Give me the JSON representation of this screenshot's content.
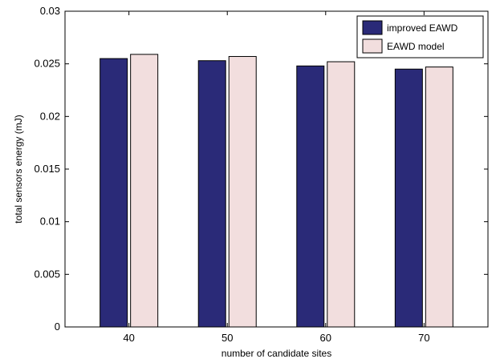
{
  "chart_data": {
    "type": "bar",
    "categories": [
      "40",
      "50",
      "60",
      "70"
    ],
    "series": [
      {
        "name": "improved EAWD",
        "values": [
          0.0255,
          0.0253,
          0.0248,
          0.0245
        ],
        "color": "#2a2a78"
      },
      {
        "name": "EAWD model",
        "values": [
          0.0259,
          0.0257,
          0.0252,
          0.0247
        ],
        "color": "#f2dede"
      }
    ],
    "xlabel": "number of candidate sites",
    "ylabel": "total sensors energy (mJ)",
    "ylim": [
      0,
      0.03
    ],
    "yticks": [
      "0",
      "0.005",
      "0.01",
      "0.015",
      "0.02",
      "0.025",
      "0.03"
    ],
    "grid": false,
    "legend_position": "top-right"
  }
}
